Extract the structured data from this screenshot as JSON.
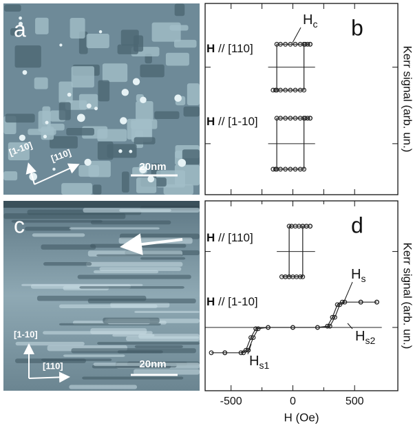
{
  "images": [
    {
      "letter": "a",
      "dir1": "[1-10]",
      "dir2": "[110]",
      "scale": "20nm"
    },
    {
      "letter": "c",
      "dir1": "[1-10]",
      "dir2": "[110]",
      "scale": "20nm"
    }
  ],
  "chart_data": [
    {
      "type": "line",
      "panel": "b",
      "ylabel": "Kerr signal (arb. un.)",
      "xlim": [
        -710,
        850
      ],
      "xticks": [
        -500,
        -250,
        0,
        250,
        500
      ],
      "xtick_labels": false,
      "ylim": [
        0,
        7.5
      ],
      "yticks": [
        2,
        5
      ],
      "ytick_labels": false,
      "marker": "circle",
      "color": "#222222",
      "annotations": [
        {
          "bold": "H",
          "text": " // [110]"
        },
        {
          "bold": "H",
          "text": " // [1-10]"
        },
        {
          "main": "H",
          "sub": "c"
        }
      ],
      "series": [
        {
          "x": [
            140,
            100,
            60,
            20,
            -20,
            -60,
            -100,
            -130,
            -130,
            -160,
            -140,
            -100,
            -60,
            -20,
            20,
            60,
            90,
            90,
            120,
            140
          ],
          "values": [
            5.9,
            5.9,
            5.9,
            5.9,
            5.9,
            5.9,
            5.9,
            5.9,
            4.1,
            4.1,
            4.1,
            4.1,
            4.1,
            4.1,
            4.1,
            4.1,
            4.1,
            5.9,
            5.9,
            5.9
          ]
        },
        {
          "x": [
            140,
            100,
            60,
            20,
            -20,
            -60,
            -100,
            -130,
            -130,
            -160,
            -140,
            -100,
            -60,
            -20,
            20,
            60,
            90,
            90,
            120,
            140
          ],
          "values": [
            3,
            3,
            3,
            3,
            3,
            3,
            3,
            3,
            1,
            1,
            1,
            1,
            1,
            1,
            1,
            1,
            1,
            3,
            3,
            3
          ]
        }
      ]
    },
    {
      "type": "line",
      "panel": "d",
      "ylabel": "Kerr signal (arb. un.)",
      "xlabel": "H (Oe)",
      "xlim": [
        -710,
        850
      ],
      "xticks": [
        -500,
        0,
        500
      ],
      "xminor": [
        -250,
        250
      ],
      "ylim": [
        -0.5,
        7
      ],
      "yticks": [
        2,
        5
      ],
      "ytick_labels": false,
      "marker": "circle",
      "color": "#222222",
      "annotations": [
        {
          "bold": "H",
          "text": " // [110]"
        },
        {
          "bold": "H",
          "text": " // [1-10]"
        },
        {
          "main": "H",
          "sub": "s"
        },
        {
          "main": "H",
          "sub": "s2"
        },
        {
          "main": "H",
          "sub": "s1"
        }
      ],
      "series": [
        {
          "x": [
            140,
            110,
            80,
            50,
            20,
            -10,
            -30,
            -30,
            -60,
            -90,
            -60,
            -30,
            0,
            30,
            60,
            80,
            80,
            110,
            140
          ],
          "values": [
            6,
            6,
            6,
            6,
            6,
            6,
            6,
            4,
            4,
            4,
            4,
            4,
            4,
            4,
            4,
            4,
            6,
            6,
            6
          ]
        },
        {
          "x": [
            680,
            550,
            420,
            380,
            340,
            300,
            200,
            0,
            -200,
            -300,
            -340,
            -380,
            -420,
            -550,
            -660,
            -550,
            -400,
            -360,
            -320,
            -280,
            -200,
            0,
            200,
            280,
            320,
            360,
            400,
            550,
            680
          ],
          "values": [
            3,
            3,
            3,
            2.9,
            2.4,
            2.05,
            2,
            2,
            2,
            1.95,
            1.6,
            1.1,
            1,
            1,
            1,
            1,
            1,
            1.1,
            1.6,
            1.95,
            2,
            2,
            2,
            2.05,
            2.4,
            2.9,
            3,
            3,
            3
          ]
        }
      ]
    }
  ]
}
